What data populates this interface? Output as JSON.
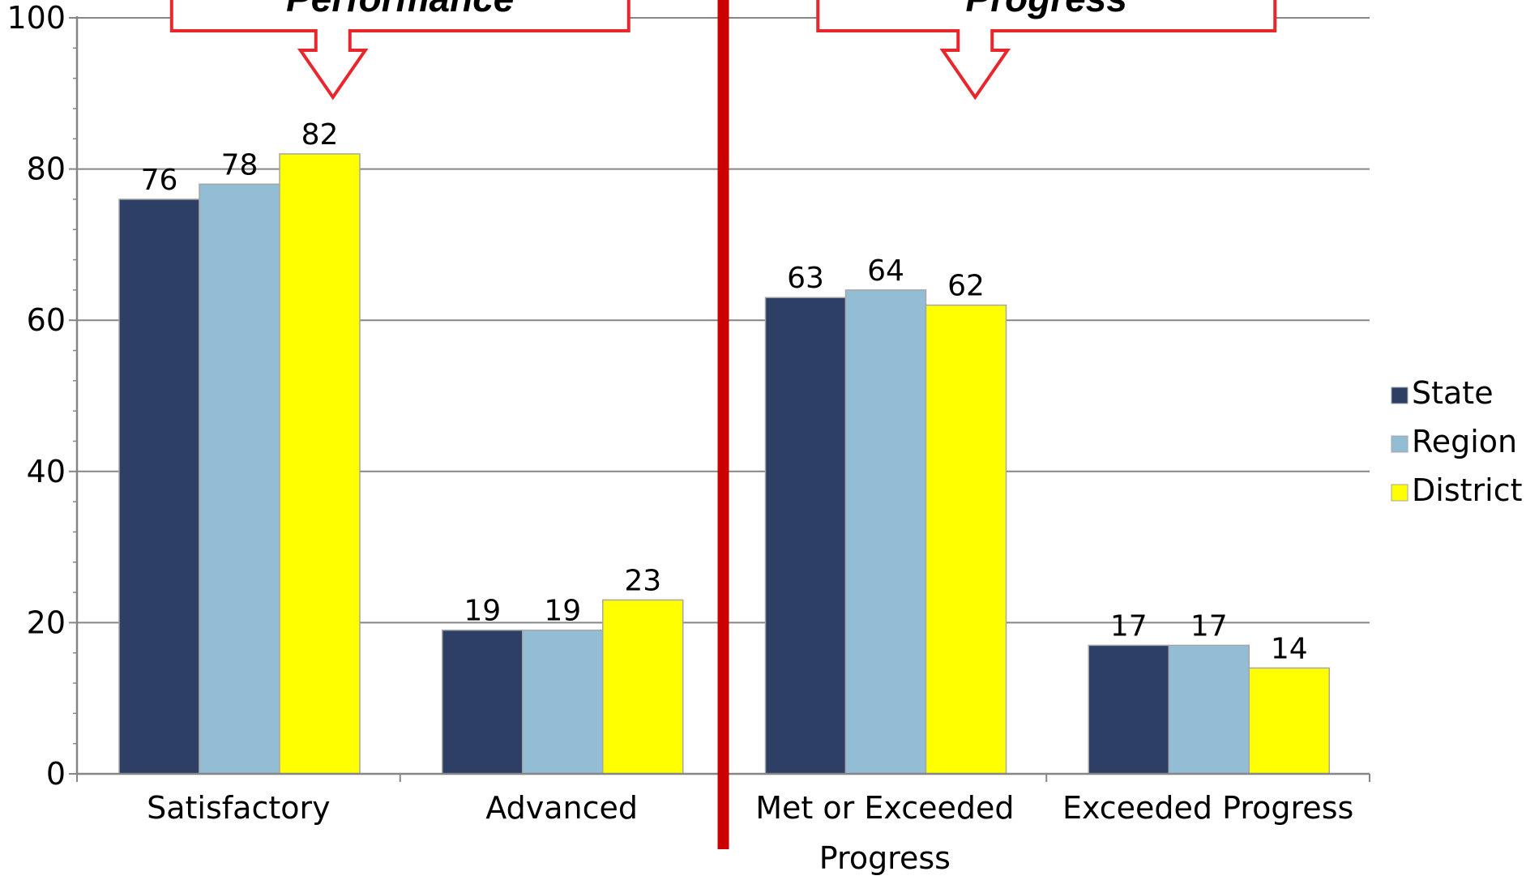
{
  "chart_data": {
    "type": "bar",
    "categories": [
      "Satisfactory",
      "Advanced",
      "Met or Exceeded Progress",
      "Exceeded Progress"
    ],
    "category_lines": [
      [
        "Satisfactory"
      ],
      [
        "Advanced"
      ],
      [
        "Met or Exceeded",
        "Progress"
      ],
      [
        "Exceeded Progress"
      ]
    ],
    "series": [
      {
        "name": "State",
        "color": "#2e3f66",
        "values": [
          76,
          19,
          63,
          17
        ]
      },
      {
        "name": "Region",
        "color": "#93bdd4",
        "values": [
          78,
          19,
          64,
          17
        ]
      },
      {
        "name": "District",
        "color": "#ffff00",
        "values": [
          82,
          23,
          62,
          14
        ]
      }
    ],
    "ylim": [
      0,
      100
    ],
    "yticks": [
      0,
      20,
      40,
      60,
      80,
      100
    ],
    "grid": true,
    "legend_position": "right",
    "data_labels": true,
    "divider_color": "#cc0000",
    "callouts": [
      {
        "text": "Performance",
        "color": "#e8262c",
        "groups": [
          0,
          1
        ]
      },
      {
        "text": "Progress",
        "color": "#e8262c",
        "groups": [
          2,
          3
        ]
      }
    ]
  }
}
